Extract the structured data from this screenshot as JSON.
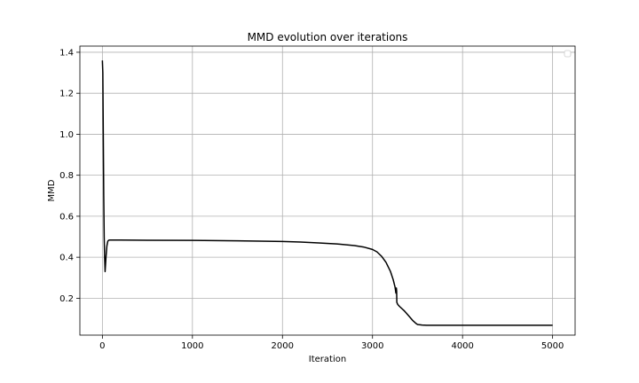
{
  "chart_data": {
    "type": "line",
    "title": "MMD evolution over iterations",
    "xlabel": "Iteration",
    "ylabel": "MMD",
    "xlim": [
      -250,
      5250
    ],
    "ylim": [
      0.02,
      1.43
    ],
    "xticks": [
      0,
      1000,
      2000,
      3000,
      4000,
      5000
    ],
    "yticks": [
      0.2,
      0.4,
      0.6,
      0.8,
      1.0,
      1.2,
      1.4
    ],
    "ytick_labels": [
      "0.2",
      "0.4",
      "0.6",
      "0.8",
      "1.0",
      "1.2",
      "1.4"
    ],
    "grid": true,
    "legend": {
      "placement": "top-right",
      "entries": []
    },
    "series": [
      {
        "color": "#000000",
        "x": [
          0,
          5,
          10,
          15,
          20,
          25,
          30,
          40,
          50,
          60,
          70,
          80,
          100,
          200,
          500,
          1000,
          1500,
          2000,
          2200,
          2400,
          2600,
          2800,
          2900,
          3000,
          3050,
          3100,
          3150,
          3200,
          3230,
          3250,
          3260,
          3265,
          3268,
          3270,
          3272,
          3275,
          3280,
          3300,
          3350,
          3400,
          3450,
          3480,
          3500,
          3550,
          3600,
          4000,
          4500,
          5000
        ],
        "y": [
          1.36,
          1.3,
          1.0,
          0.7,
          0.5,
          0.4,
          0.33,
          0.4,
          0.455,
          0.478,
          0.483,
          0.484,
          0.484,
          0.484,
          0.483,
          0.482,
          0.48,
          0.477,
          0.474,
          0.47,
          0.465,
          0.457,
          0.45,
          0.438,
          0.426,
          0.405,
          0.375,
          0.33,
          0.29,
          0.255,
          0.225,
          0.25,
          0.235,
          0.18,
          0.178,
          0.175,
          0.17,
          0.16,
          0.14,
          0.115,
          0.09,
          0.078,
          0.072,
          0.069,
          0.068,
          0.068,
          0.068,
          0.068
        ]
      }
    ]
  }
}
